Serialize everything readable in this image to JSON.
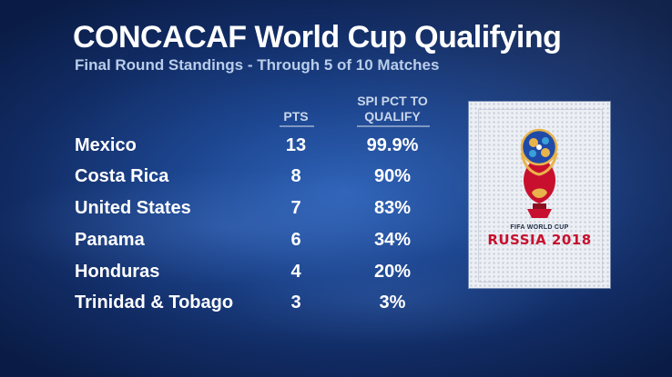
{
  "title": "CONCACAF World Cup Qualifying",
  "subtitle": "Final Round Standings - Through 5 of 10 Matches",
  "columns": {
    "pts": "PTS",
    "spi_line1": "SPI PCT TO",
    "spi_line2": "QUALIFY"
  },
  "rows": [
    {
      "team": "Mexico",
      "pts": "13",
      "pct": "99.9%"
    },
    {
      "team": "Costa Rica",
      "pts": "8",
      "pct": "90%"
    },
    {
      "team": "United States",
      "pts": "7",
      "pct": "83%"
    },
    {
      "team": "Panama",
      "pts": "6",
      "pct": "34%"
    },
    {
      "team": "Honduras",
      "pts": "4",
      "pct": "20%"
    },
    {
      "team": "Trinidad & Tobago",
      "pts": "3",
      "pct": "3%"
    }
  ],
  "logo": {
    "line1": "FIFA WORLD CUP",
    "line2": "RUSSIA 2018"
  },
  "colors": {
    "background": "#1d4690",
    "text": "#ffffff",
    "logo_red": "#c8102e",
    "logo_blue": "#1f4aa8"
  }
}
